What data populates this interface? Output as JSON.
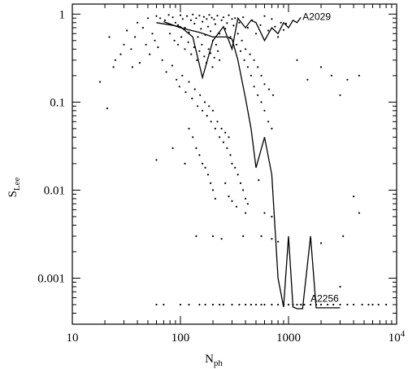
{
  "chart_data": {
    "type": "scatter",
    "xlabel": "N",
    "xlabel_sub": "ph",
    "ylabel": "S",
    "ylabel_sub": "Lee",
    "xscale": "log",
    "yscale": "log",
    "xlim": [
      10,
      10000
    ],
    "ylim": [
      0.0003,
      1.3
    ],
    "grid": false,
    "x_ticks": [
      {
        "value": 10,
        "label": "10"
      },
      {
        "value": 100,
        "label": "100"
      },
      {
        "value": 1000,
        "label": "1000"
      },
      {
        "value": 10000,
        "label": "10",
        "sup": "4"
      }
    ],
    "y_ticks": [
      {
        "value": 1,
        "label": "1"
      },
      {
        "value": 0.1,
        "label": "0.1"
      },
      {
        "value": 0.01,
        "label": "0.01"
      },
      {
        "value": 0.001,
        "label": "0.001"
      }
    ],
    "annotations": [
      {
        "text": "A2029",
        "x": 1350,
        "y": 0.93
      },
      {
        "text": "A2256",
        "x": 1600,
        "y": 0.00059
      }
    ],
    "line_series": [
      {
        "x": [
          60,
          100,
          130,
          160,
          200,
          250,
          300,
          340,
          400,
          450,
          500,
          600,
          700,
          800,
          900,
          1000,
          1100,
          1200,
          1300
        ],
        "y": [
          0.8,
          0.72,
          0.55,
          0.19,
          0.5,
          0.72,
          0.4,
          0.9,
          0.7,
          0.85,
          0.8,
          0.5,
          0.7,
          0.6,
          0.8,
          0.7,
          0.85,
          0.8,
          0.92
        ]
      },
      {
        "x": [
          70,
          100,
          150,
          200,
          270,
          300,
          340,
          400,
          450,
          500,
          600,
          700,
          800,
          900,
          1000,
          1100,
          1200,
          1350,
          1600,
          1800,
          2000,
          3000
        ],
        "y": [
          0.82,
          0.7,
          0.62,
          0.55,
          0.55,
          0.52,
          0.3,
          0.11,
          0.05,
          0.018,
          0.04,
          0.015,
          0.001,
          0.00047,
          0.003,
          0.00047,
          0.00045,
          0.00045,
          0.003,
          0.00046,
          0.00046,
          0.00046
        ]
      }
    ],
    "scatter_points": [
      [
        60,
        0.95
      ],
      [
        65,
        0.9
      ],
      [
        72,
        0.85
      ],
      [
        78,
        0.98
      ],
      [
        85,
        0.92
      ],
      [
        90,
        0.8
      ],
      [
        95,
        0.75
      ],
      [
        100,
        0.97
      ],
      [
        105,
        0.88
      ],
      [
        110,
        0.7
      ],
      [
        115,
        0.95
      ],
      [
        120,
        0.62
      ],
      [
        125,
        0.85
      ],
      [
        130,
        0.99
      ],
      [
        135,
        0.78
      ],
      [
        140,
        0.9
      ],
      [
        145,
        0.55
      ],
      [
        150,
        0.96
      ],
      [
        155,
        0.68
      ],
      [
        160,
        0.82
      ],
      [
        165,
        0.93
      ],
      [
        170,
        0.58
      ],
      [
        175,
        0.88
      ],
      [
        180,
        0.72
      ],
      [
        185,
        0.98
      ],
      [
        190,
        0.64
      ],
      [
        195,
        0.91
      ],
      [
        200,
        0.5
      ],
      [
        205,
        0.87
      ],
      [
        210,
        0.77
      ],
      [
        220,
        0.96
      ],
      [
        230,
        0.6
      ],
      [
        240,
        0.85
      ],
      [
        250,
        0.92
      ],
      [
        260,
        0.68
      ],
      [
        270,
        0.79
      ],
      [
        280,
        0.97
      ],
      [
        290,
        0.55
      ],
      [
        300,
        0.88
      ],
      [
        310,
        0.74
      ],
      [
        80,
        0.6
      ],
      [
        88,
        0.5
      ],
      [
        95,
        0.45
      ],
      [
        102,
        0.55
      ],
      [
        110,
        0.4
      ],
      [
        118,
        0.48
      ],
      [
        126,
        0.35
      ],
      [
        134,
        0.42
      ],
      [
        142,
        0.3
      ],
      [
        150,
        0.38
      ],
      [
        158,
        0.45
      ],
      [
        166,
        0.33
      ],
      [
        174,
        0.28
      ],
      [
        182,
        0.4
      ],
      [
        190,
        0.36
      ],
      [
        198,
        0.25
      ],
      [
        206,
        0.32
      ],
      [
        214,
        0.45
      ],
      [
        222,
        0.38
      ],
      [
        230,
        0.3
      ],
      [
        40,
        0.8
      ],
      [
        45,
        0.7
      ],
      [
        50,
        0.9
      ],
      [
        55,
        0.6
      ],
      [
        48,
        0.45
      ],
      [
        52,
        0.35
      ],
      [
        58,
        0.5
      ],
      [
        35,
        0.4
      ],
      [
        38,
        0.55
      ],
      [
        42,
        0.28
      ],
      [
        30,
        0.45
      ],
      [
        28,
        0.35
      ],
      [
        32,
        0.65
      ],
      [
        25,
        0.3
      ],
      [
        36,
        0.25
      ],
      [
        62,
        0.42
      ],
      [
        68,
        0.3
      ],
      [
        74,
        0.22
      ],
      [
        84,
        0.26
      ],
      [
        92,
        0.18
      ],
      [
        98,
        0.15
      ],
      [
        104,
        0.2
      ],
      [
        112,
        0.13
      ],
      [
        120,
        0.17
      ],
      [
        128,
        0.11
      ],
      [
        136,
        0.14
      ],
      [
        144,
        0.09
      ],
      [
        152,
        0.12
      ],
      [
        160,
        0.08
      ],
      [
        168,
        0.1
      ],
      [
        176,
        0.07
      ],
      [
        184,
        0.09
      ],
      [
        192,
        0.06
      ],
      [
        200,
        0.08
      ],
      [
        210,
        0.05
      ],
      [
        220,
        0.06
      ],
      [
        230,
        0.04
      ],
      [
        240,
        0.05
      ],
      [
        250,
        0.035
      ],
      [
        260,
        0.045
      ],
      [
        270,
        0.03
      ],
      [
        280,
        0.04
      ],
      [
        290,
        0.025
      ],
      [
        300,
        0.02
      ],
      [
        320,
        0.018
      ],
      [
        340,
        0.015
      ],
      [
        360,
        0.012
      ],
      [
        380,
        0.01
      ],
      [
        400,
        0.008
      ],
      [
        420,
        0.007
      ],
      [
        120,
        0.05
      ],
      [
        130,
        0.04
      ],
      [
        140,
        0.03
      ],
      [
        150,
        0.025
      ],
      [
        160,
        0.02
      ],
      [
        170,
        0.018
      ],
      [
        180,
        0.015
      ],
      [
        190,
        0.012
      ],
      [
        200,
        0.01
      ],
      [
        210,
        0.008
      ],
      [
        320,
        0.9
      ],
      [
        350,
        0.8
      ],
      [
        380,
        0.92
      ],
      [
        420,
        0.7
      ],
      [
        460,
        0.85
      ],
      [
        500,
        0.6
      ],
      [
        550,
        0.75
      ],
      [
        600,
        0.95
      ],
      [
        650,
        0.65
      ],
      [
        700,
        0.88
      ],
      [
        750,
        0.72
      ],
      [
        800,
        0.55
      ],
      [
        850,
        0.8
      ],
      [
        900,
        0.66
      ],
      [
        950,
        0.78
      ],
      [
        330,
        0.45
      ],
      [
        360,
        0.38
      ],
      [
        390,
        0.3
      ],
      [
        420,
        0.25
      ],
      [
        450,
        0.2
      ],
      [
        480,
        0.15
      ],
      [
        520,
        0.12
      ],
      [
        560,
        0.1
      ],
      [
        600,
        0.08
      ],
      [
        650,
        0.06
      ],
      [
        700,
        0.05
      ],
      [
        340,
        0.6
      ],
      [
        370,
        0.5
      ],
      [
        400,
        0.4
      ],
      [
        440,
        0.35
      ],
      [
        480,
        0.3
      ],
      [
        520,
        0.25
      ],
      [
        560,
        0.2
      ],
      [
        600,
        0.16
      ],
      [
        660,
        0.14
      ],
      [
        720,
        0.12
      ],
      [
        18,
        0.17
      ],
      [
        21,
        0.085
      ],
      [
        22,
        0.55
      ],
      [
        24,
        0.25
      ],
      [
        60,
        0.022
      ],
      [
        85,
        0.03
      ],
      [
        110,
        0.02
      ],
      [
        260,
        0.012
      ],
      [
        280,
        0.0085
      ],
      [
        300,
        0.0075
      ],
      [
        330,
        0.0065
      ],
      [
        400,
        0.0055
      ],
      [
        530,
        0.013
      ],
      [
        600,
        0.0055
      ],
      [
        700,
        0.005
      ],
      [
        4000,
        0.0085
      ],
      [
        4500,
        0.0055
      ],
      [
        3000,
        0.12
      ],
      [
        3500,
        0.18
      ],
      [
        2500,
        0.2
      ],
      [
        2000,
        0.25
      ],
      [
        1500,
        0.18
      ],
      [
        1200,
        0.3
      ],
      [
        4500,
        0.2
      ],
      [
        140,
        0.003
      ],
      [
        200,
        0.003
      ],
      [
        240,
        0.0028
      ],
      [
        380,
        0.003
      ],
      [
        560,
        0.003
      ],
      [
        700,
        0.0028
      ],
      [
        800,
        0.0026
      ],
      [
        1600,
        0.0028
      ],
      [
        2000,
        0.0025
      ],
      [
        3200,
        0.003
      ],
      [
        3000,
        0.0008
      ],
      [
        60,
        0.0005
      ],
      [
        70,
        0.0005
      ],
      [
        100,
        0.0005
      ],
      [
        120,
        0.0005
      ],
      [
        150,
        0.0005
      ],
      [
        170,
        0.0005
      ],
      [
        200,
        0.0005
      ],
      [
        230,
        0.0005
      ],
      [
        250,
        0.0005
      ],
      [
        300,
        0.0005
      ],
      [
        350,
        0.0005
      ],
      [
        400,
        0.0005
      ],
      [
        450,
        0.0005
      ],
      [
        500,
        0.0005
      ],
      [
        560,
        0.0005
      ],
      [
        600,
        0.0005
      ],
      [
        700,
        0.0005
      ],
      [
        800,
        0.0005
      ],
      [
        900,
        0.0005
      ],
      [
        1000,
        0.0005
      ],
      [
        1100,
        0.0005
      ],
      [
        1200,
        0.0005
      ],
      [
        1300,
        0.0005
      ],
      [
        1400,
        0.0005
      ],
      [
        1600,
        0.0005
      ],
      [
        1800,
        0.0005
      ],
      [
        2000,
        0.0005
      ],
      [
        2300,
        0.0005
      ],
      [
        2600,
        0.0005
      ],
      [
        3000,
        0.0005
      ],
      [
        3500,
        0.0005
      ],
      [
        4000,
        0.0005
      ],
      [
        4800,
        0.0005
      ],
      [
        5500,
        0.0005
      ],
      [
        6000,
        0.0005
      ],
      [
        6800,
        0.0005
      ],
      [
        8000,
        0.0005
      ]
    ]
  }
}
